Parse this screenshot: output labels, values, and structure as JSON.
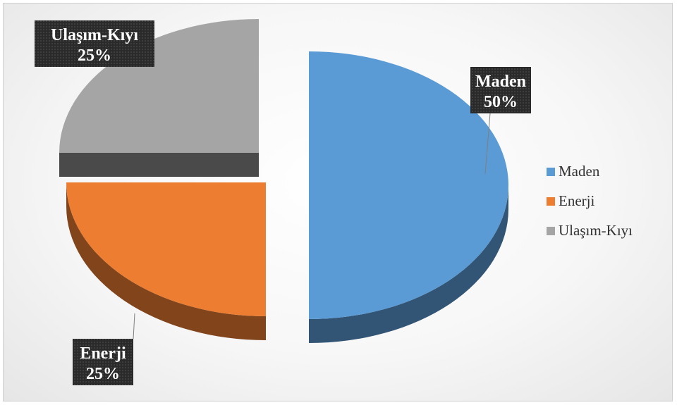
{
  "chart_data": {
    "type": "pie",
    "categories": [
      "Maden",
      "Enerji",
      "Ulaşım-Kıyı"
    ],
    "values": [
      50,
      25,
      25
    ],
    "data_labels": [
      {
        "name": "Maden",
        "value": "50%"
      },
      {
        "name": "Enerji",
        "value": "25%"
      },
      {
        "name": "Ulaşım-Kıyı",
        "value": "25%"
      }
    ],
    "colors": [
      "#5b9bd5",
      "#ed7d31",
      "#a5a5a5"
    ],
    "legend": {
      "position": "right",
      "entries": [
        "Maden",
        "Enerji",
        "Ulaşım-Kıyı"
      ]
    },
    "style": "3d-exploded"
  }
}
